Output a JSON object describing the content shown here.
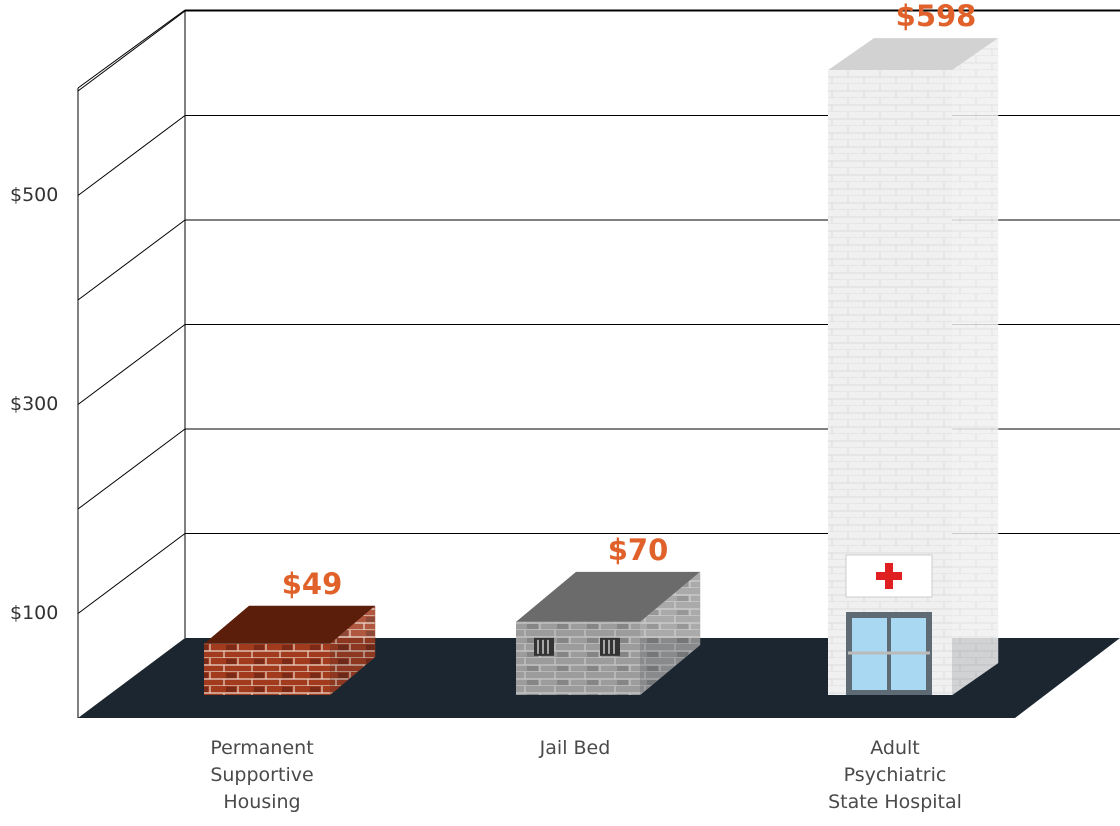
{
  "chart_data": {
    "type": "bar3d",
    "categories": [
      "Permanent Supportive Housing",
      "Jail Bed",
      "Adult Psychiatric State Hospital"
    ],
    "values": [
      49,
      70,
      598
    ],
    "value_labels": [
      "$49",
      "$70",
      "$598"
    ],
    "colors": [
      "#a23a1e",
      "#9c9c9c",
      "#f0f0f0"
    ],
    "ylim": [
      0,
      600
    ],
    "yticks": [
      {
        "value": 100,
        "label": "$100"
      },
      {
        "value": 200,
        "label": null
      },
      {
        "value": 300,
        "label": "$300"
      },
      {
        "value": 400,
        "label": null
      },
      {
        "value": 500,
        "label": "$500"
      },
      {
        "value": 600,
        "label": null
      }
    ],
    "grid": true
  }
}
